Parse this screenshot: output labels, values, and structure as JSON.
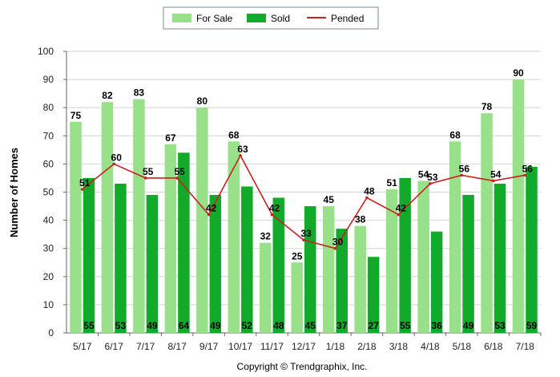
{
  "chart_data": {
    "type": "bar",
    "categories": [
      "5/17",
      "6/17",
      "7/17",
      "8/17",
      "9/17",
      "10/17",
      "11/17",
      "12/17",
      "1/18",
      "2/18",
      "3/18",
      "4/18",
      "5/18",
      "6/18",
      "7/18"
    ],
    "series": [
      {
        "name": "For Sale",
        "type": "bar",
        "color": "#99e08a",
        "values": [
          75,
          82,
          83,
          67,
          80,
          68,
          32,
          25,
          45,
          38,
          51,
          54,
          68,
          78,
          90
        ]
      },
      {
        "name": "Sold",
        "type": "bar",
        "color": "#12aa2a",
        "values": [
          55,
          53,
          49,
          64,
          49,
          52,
          48,
          45,
          37,
          27,
          55,
          36,
          49,
          53,
          59
        ]
      },
      {
        "name": "Pended",
        "type": "line",
        "color": "#cc2020",
        "values": [
          51,
          60,
          55,
          55,
          42,
          63,
          42,
          33,
          30,
          48,
          42,
          53,
          56,
          54,
          56
        ]
      }
    ],
    "ylabel": "Number of Homes",
    "xlabel": "",
    "ylim": [
      0,
      100
    ],
    "yticks": [
      0,
      10,
      20,
      30,
      40,
      50,
      60,
      70,
      80,
      90,
      100
    ],
    "grid": true,
    "legend_position": "top-center"
  },
  "copyright": "Copyright © Trendgraphix, Inc."
}
